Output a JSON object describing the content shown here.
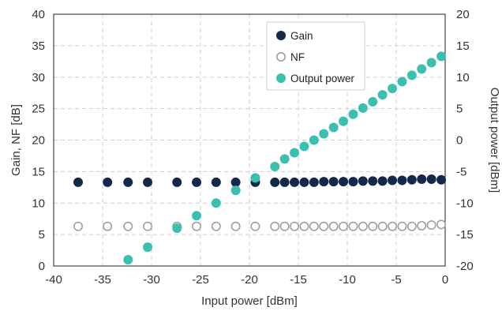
{
  "chart_data": {
    "type": "scatter",
    "title": "",
    "xlabel": "Input power [dBm]",
    "ylabel": "Gain, NF [dB]",
    "y2label": "Output power [dBm]",
    "xlim": [
      -40,
      0
    ],
    "ylim": [
      0,
      40
    ],
    "y2lim": [
      -20,
      20
    ],
    "xticks": [
      -40,
      -35,
      -30,
      -25,
      -20,
      -15,
      -10,
      -5,
      0
    ],
    "yticks": [
      0,
      5,
      10,
      15,
      20,
      25,
      30,
      35,
      40
    ],
    "y2ticks": [
      -20,
      -15,
      -10,
      -5,
      0,
      5,
      10,
      15,
      20
    ],
    "xtick_labels": [
      "-40",
      "-35",
      "-30",
      "-25",
      "-20",
      "-15",
      "-10",
      "-5",
      "0"
    ],
    "ytick_labels": [
      "0",
      "5",
      "10",
      "15",
      "20",
      "25",
      "30",
      "35",
      "40"
    ],
    "y2tick_labels": [
      "-20",
      "-15",
      "-10",
      "-5",
      "0",
      "5",
      "10",
      "15",
      "20"
    ],
    "grid": true,
    "legend_position": "top-right",
    "series": [
      {
        "name": "Gain",
        "axis": "left",
        "color": "#14284b",
        "marker": "filled-circle",
        "x": [
          -37.5,
          -34.5,
          -32.4,
          -30.4,
          -27.4,
          -25.4,
          -23.4,
          -21.4,
          -19.4,
          -17.4,
          -16.4,
          -15.4,
          -14.4,
          -13.4,
          -12.4,
          -11.4,
          -10.4,
          -9.4,
          -8.4,
          -7.4,
          -6.4,
          -5.4,
          -4.4,
          -3.4,
          -2.4,
          -1.4,
          -0.4
        ],
        "y": [
          13.3,
          13.3,
          13.3,
          13.3,
          13.3,
          13.3,
          13.3,
          13.3,
          13.3,
          13.3,
          13.3,
          13.3,
          13.3,
          13.3,
          13.4,
          13.4,
          13.4,
          13.4,
          13.5,
          13.5,
          13.5,
          13.6,
          13.6,
          13.7,
          13.8,
          13.8,
          13.7
        ]
      },
      {
        "name": "NF",
        "axis": "left",
        "color": "#a0a0a0",
        "marker": "open-circle",
        "x": [
          -37.5,
          -34.5,
          -32.4,
          -30.4,
          -27.4,
          -25.4,
          -23.4,
          -21.4,
          -19.4,
          -17.4,
          -16.4,
          -15.4,
          -14.4,
          -13.4,
          -12.4,
          -11.4,
          -10.4,
          -9.4,
          -8.4,
          -7.4,
          -6.4,
          -5.4,
          -4.4,
          -3.4,
          -2.4,
          -1.4,
          -0.4
        ],
        "y": [
          6.3,
          6.3,
          6.3,
          6.3,
          6.3,
          6.3,
          6.3,
          6.3,
          6.3,
          6.3,
          6.3,
          6.3,
          6.3,
          6.3,
          6.3,
          6.3,
          6.3,
          6.3,
          6.3,
          6.3,
          6.3,
          6.3,
          6.3,
          6.3,
          6.4,
          6.5,
          6.6
        ]
      },
      {
        "name": "Output power",
        "axis": "right",
        "color": "#3dbfb0",
        "marker": "filled-circle",
        "x": [
          -32.4,
          -30.4,
          -27.4,
          -25.4,
          -23.4,
          -21.4,
          -19.4,
          -17.4,
          -16.4,
          -15.4,
          -14.4,
          -13.4,
          -12.4,
          -11.4,
          -10.4,
          -9.4,
          -8.4,
          -7.4,
          -6.4,
          -5.4,
          -4.4,
          -3.4,
          -2.4,
          -1.4,
          -0.4
        ],
        "y": [
          -19.0,
          -17.0,
          -14.0,
          -12.0,
          -10.0,
          -8.0,
          -6.0,
          -4.2,
          -3.0,
          -2.0,
          -1.0,
          0.0,
          1.0,
          2.0,
          3.0,
          4.1,
          5.1,
          6.1,
          7.2,
          8.2,
          9.3,
          10.3,
          11.3,
          12.3,
          13.3
        ]
      }
    ]
  }
}
